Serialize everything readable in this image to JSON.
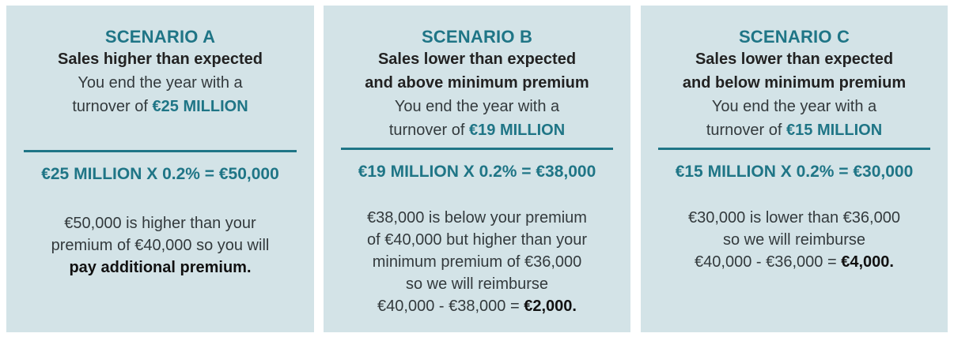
{
  "scenarios": [
    {
      "title": "SCENARIO A",
      "subtitle_lines": [
        "Sales higher than expected"
      ],
      "desc_line1": "You end the year with a",
      "turnover_prefix": "turnover of ",
      "turnover_value": "€25 MILLION",
      "calculation": "€25 MILLION X 0.2% = €50,000",
      "body_lines": [
        "€50,000 is higher than your",
        "premium of €40,000 so you will"
      ],
      "body_bold_line": "pay additional premium."
    },
    {
      "title": "SCENARIO B",
      "subtitle_lines": [
        "Sales lower than expected",
        "and above minimum premium"
      ],
      "desc_line1": "You end the year with a",
      "turnover_prefix": "turnover of ",
      "turnover_value": "€19 MILLION",
      "calculation": "€19 MILLION X 0.2% = €38,000",
      "body_lines": [
        "€38,000 is below your premium",
        "of €40,000 but higher than your",
        "minimum premium of €36,000",
        "so we will reimburse"
      ],
      "final_prefix": "€40,000 - €38,000 = ",
      "final_value": "€2,000."
    },
    {
      "title": "SCENARIO C",
      "subtitle_lines": [
        "Sales lower than expected",
        "and below minimum premium"
      ],
      "desc_line1": "You end the year with a",
      "turnover_prefix": "turnover of ",
      "turnover_value": "€15 MILLION",
      "calculation": "€15 MILLION X 0.2% = €30,000",
      "body_lines": [
        "€30,000 is lower than €36,000",
        "so we will reimburse"
      ],
      "final_prefix": "€40,000 - €36,000 = ",
      "final_value": "€4,000."
    }
  ]
}
